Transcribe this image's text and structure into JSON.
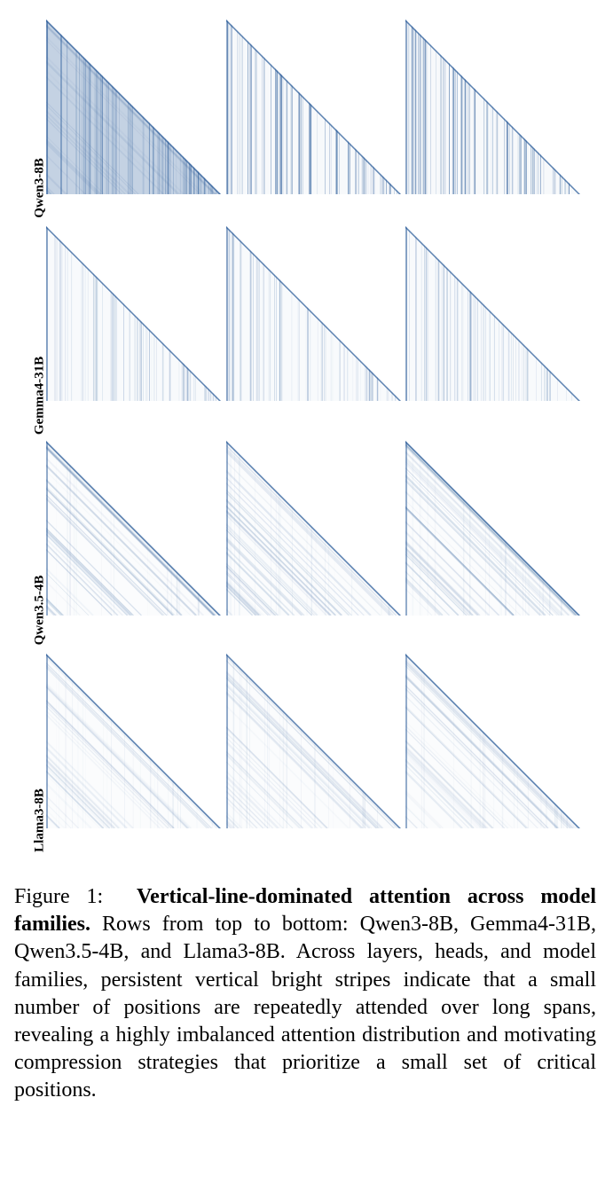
{
  "figure": {
    "row_labels": [
      "Qwen3-8B",
      "Gemma4-31B",
      "Qwen3.5-4B",
      "Llama3-8B"
    ],
    "caption": {
      "label": "Figure 1:",
      "title": "Vertical-line-dominated attention across model families.",
      "text": "Rows from top to bottom: Qwen3-8B, Gemma4-31B, Qwen3.5-4B, and Llama3-8B. Across layers, heads, and model families, persistent vertical bright stripes indicate that a small number of positions are repeatedly attended over long spans, revealing a highly imbalanced attention distribution and motivating compression strategies that prioritize a small set of critical positions."
    }
  }
}
